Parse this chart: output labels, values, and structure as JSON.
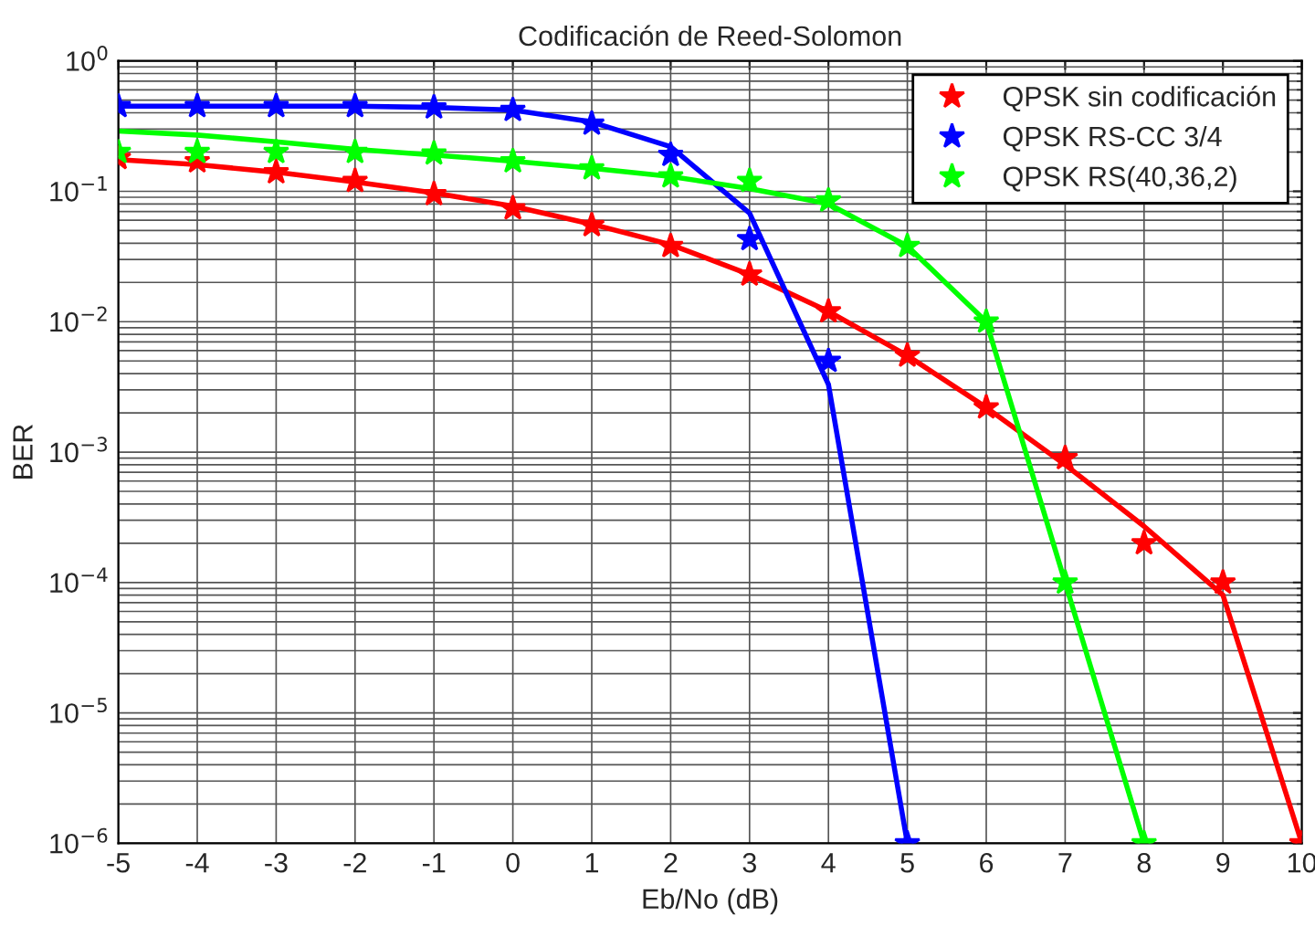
{
  "chart_data": {
    "type": "scatter",
    "title": "Codificación de Reed-Solomon",
    "xlabel": "Eb/No (dB)",
    "ylabel": "BER",
    "log": "y",
    "grid": true,
    "legend": "top right",
    "marker": "star",
    "xlim": [
      -5,
      10
    ],
    "xticks": [
      -5,
      -4,
      -3,
      -2,
      -1,
      0,
      1,
      2,
      3,
      4,
      5,
      6,
      7,
      8,
      9,
      10
    ],
    "ylim": [
      1e-06,
      1
    ],
    "yticks": [
      {
        "value": 1e-06,
        "label": "10$^{−6}$"
      },
      {
        "value": 1e-05,
        "label": "10$^{−5}$"
      },
      {
        "value": 0.0001,
        "label": "10$^{−4}$"
      },
      {
        "value": 0.001,
        "label": "10$^{−3}$"
      },
      {
        "value": 0.01,
        "label": "10$^{−2}$"
      },
      {
        "value": 0.1,
        "label": "10$^{−1}$"
      },
      {
        "value": 1,
        "label": "10$^{0}$"
      }
    ],
    "series": [
      {
        "type": "line",
        "color": "#ff0000",
        "marker": "none",
        "x": [
          -5,
          -4,
          -3,
          -2,
          -1,
          0,
          1,
          2,
          3,
          4,
          5,
          6,
          7,
          8,
          9,
          10
        ],
        "values": [
          0.175,
          0.16,
          0.14,
          0.118,
          0.097,
          0.077,
          0.056,
          0.039,
          0.023,
          0.012,
          0.0055,
          0.0022,
          0.0008,
          0.00027,
          8e-05,
          1e-06
        ]
      },
      {
        "type": "line",
        "color": "#0000ff",
        "marker": "none",
        "x": [
          -5,
          -4,
          -3,
          -2,
          -1,
          0,
          1,
          2,
          3,
          4,
          5
        ],
        "values": [
          0.45,
          0.45,
          0.45,
          0.45,
          0.44,
          0.42,
          0.34,
          0.22,
          0.068,
          0.0033,
          1e-06
        ]
      },
      {
        "type": "line",
        "color": "#00ff00",
        "marker": "none",
        "x": [
          -5,
          -4,
          -3,
          -2,
          -1,
          0,
          1,
          2,
          3,
          4,
          5,
          6,
          7,
          8
        ],
        "values": [
          0.29,
          0.27,
          0.24,
          0.21,
          0.19,
          0.17,
          0.15,
          0.13,
          0.105,
          0.08,
          0.038,
          0.01,
          0.0001,
          1e-06
        ]
      },
      {
        "name": "QPSK sin codificación",
        "color": "#ff0000",
        "x": [
          -5,
          -4,
          -3,
          -2,
          -1,
          0,
          1,
          2,
          3,
          4,
          5,
          6,
          7,
          8,
          9,
          10
        ],
        "values": [
          0.18,
          0.17,
          0.14,
          0.12,
          0.095,
          0.074,
          0.055,
          0.038,
          0.023,
          0.012,
          0.0055,
          0.0022,
          0.0009,
          0.0002,
          0.0001,
          1e-06
        ]
      },
      {
        "name": "QPSK RS-CC 3/4",
        "color": "#0000ff",
        "x": [
          -5,
          -4,
          -3,
          -2,
          -1,
          0,
          1,
          2,
          3,
          4,
          5
        ],
        "values": [
          0.45,
          0.45,
          0.45,
          0.45,
          0.44,
          0.42,
          0.33,
          0.19,
          0.043,
          0.005,
          1e-06
        ]
      },
      {
        "name": "QPSK RS(40,36,2)",
        "color": "#00ff00",
        "x": [
          -5,
          -4,
          -3,
          -2,
          -1,
          0,
          1,
          2,
          3,
          4,
          5,
          6,
          7,
          8
        ],
        "values": [
          0.2,
          0.2,
          0.2,
          0.2,
          0.195,
          0.17,
          0.15,
          0.13,
          0.12,
          0.085,
          0.038,
          0.01,
          0.0001,
          1e-06
        ]
      }
    ]
  }
}
